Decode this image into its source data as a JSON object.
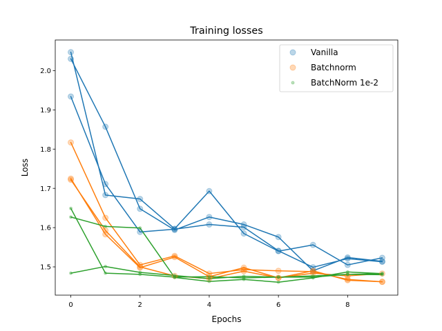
{
  "chart_data": {
    "type": "line",
    "title": "Training losses",
    "xlabel": "Epochs",
    "ylabel": "Loss",
    "xlim": [
      -0.45,
      9.45
    ],
    "ylim": [
      1.428,
      2.078
    ],
    "grid": false,
    "legend_position": "top-right",
    "x_ticks": [
      0,
      2,
      4,
      6,
      8
    ],
    "y_ticks": [
      1.5,
      1.6,
      1.7,
      1.8,
      1.9,
      2.0
    ],
    "x_tick_labels": [
      "0",
      "2",
      "4",
      "6",
      "8"
    ],
    "y_tick_labels": [
      "1.5",
      "1.6",
      "1.7",
      "1.8",
      "1.9",
      "2.0"
    ],
    "x": [
      0,
      1,
      2,
      3,
      4,
      5,
      6,
      7,
      8,
      9
    ],
    "groups": [
      {
        "name": "Vanilla",
        "color": "#1f77b4",
        "marker_alpha": 0.3,
        "marker_size": 4,
        "runs": [
          [
            2.047,
            1.683,
            1.673,
            1.597,
            1.693,
            1.585,
            1.54,
            1.556,
            1.505,
            1.523
          ],
          [
            2.03,
            1.857,
            1.648,
            1.594,
            1.627,
            1.608,
            1.576,
            1.49,
            1.524,
            1.514
          ],
          [
            1.934,
            1.711,
            1.589,
            1.596,
            1.608,
            1.601,
            1.541,
            1.499,
            1.521,
            1.513
          ]
        ]
      },
      {
        "name": "Batchnorm",
        "color": "#ff7f0e",
        "marker_alpha": 0.3,
        "marker_size": 4,
        "runs": [
          [
            1.817,
            1.625,
            1.505,
            1.528,
            1.483,
            1.493,
            1.49,
            1.488,
            1.468,
            1.462
          ],
          [
            1.725,
            1.583,
            1.498,
            1.525,
            1.475,
            1.498,
            1.472,
            1.484,
            1.477,
            1.483
          ],
          [
            1.722,
            1.593,
            1.5,
            1.477,
            1.47,
            1.489,
            1.472,
            1.49,
            1.466,
            1.462
          ]
        ]
      },
      {
        "name": "BatchNorm 1e-2",
        "color": "#2ca02c",
        "marker_alpha": 0.3,
        "marker_size": 2,
        "runs": [
          [
            1.649,
            1.484,
            1.481,
            1.474,
            1.475,
            1.472,
            1.474,
            1.477,
            1.481,
            1.483
          ],
          [
            1.627,
            1.603,
            1.599,
            1.473,
            1.463,
            1.468,
            1.461,
            1.472,
            1.487,
            1.483
          ],
          [
            1.484,
            1.501,
            1.486,
            1.478,
            1.47,
            1.476,
            1.474,
            1.474,
            1.481,
            1.48
          ]
        ]
      }
    ]
  }
}
